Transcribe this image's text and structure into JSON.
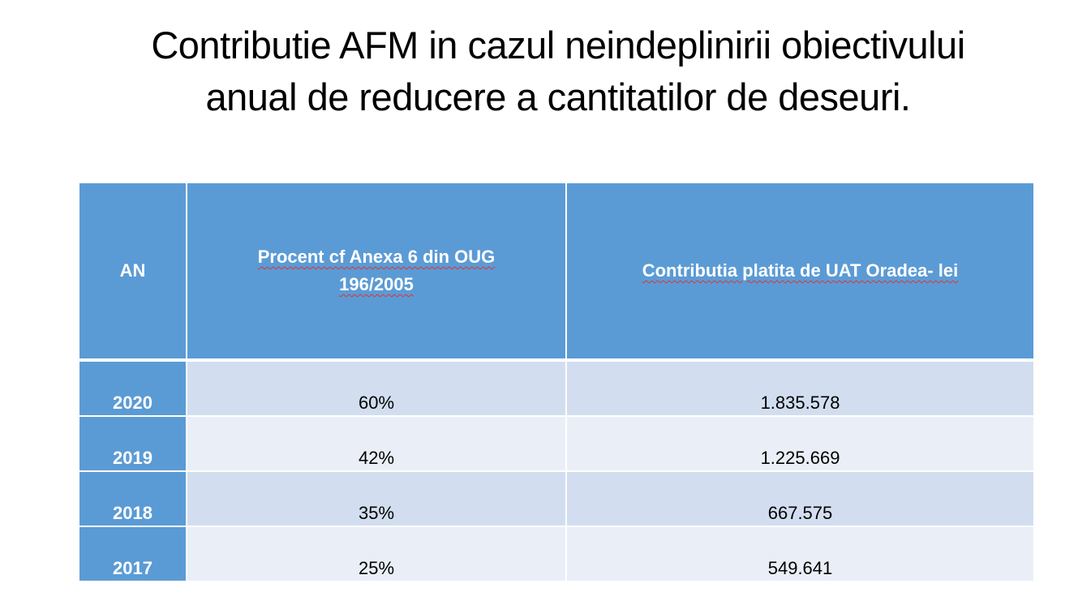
{
  "title": {
    "line1": "Contributie AFM in cazul neindeplinirii obiectivului",
    "line2": "anual de reducere a cantitatilor de deseuri."
  },
  "table": {
    "headers": [
      "AN",
      "Procent cf Anexa 6 din OUG 196/2005",
      "Contributia platita de UAT Oradea- lei"
    ],
    "rows": [
      {
        "year": "2020",
        "percent": "60%",
        "amount": "1.835.578"
      },
      {
        "year": "2019",
        "percent": "42%",
        "amount": "1.225.669"
      },
      {
        "year": "2018",
        "percent": "35%",
        "amount": "667.575"
      },
      {
        "year": "2017",
        "percent": "25%",
        "amount": "549.641"
      }
    ]
  },
  "colors": {
    "header": "#5b9bd5",
    "row_odd": "#d2deef",
    "row_even": "#eaeff7"
  }
}
